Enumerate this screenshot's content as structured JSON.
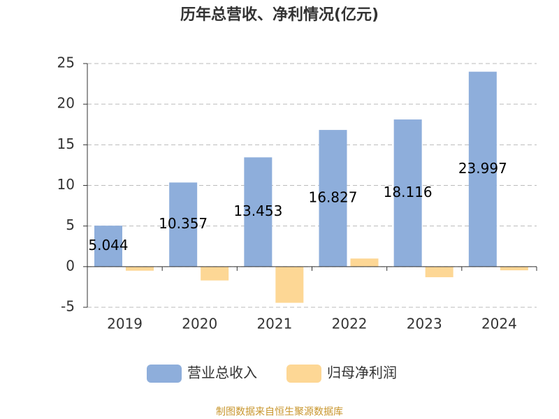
{
  "chart_data": {
    "type": "bar",
    "title": "历年总营收、净利情况(亿元)",
    "categories": [
      "2019",
      "2020",
      "2021",
      "2022",
      "2023",
      "2024"
    ],
    "series": [
      {
        "name": "营业总收入",
        "color": "#8eaedb",
        "values": [
          5.044,
          10.357,
          13.453,
          16.827,
          18.116,
          23.997
        ]
      },
      {
        "name": "归母净利润",
        "color": "#fdd795",
        "values": [
          -0.5,
          -1.7,
          -4.45,
          1.0,
          -1.3,
          -0.45
        ]
      }
    ],
    "ylim": [
      -5,
      25
    ],
    "yticks": [
      -5,
      0,
      5,
      10,
      15,
      20,
      25
    ],
    "grid": true,
    "source": "制图数据来自恒生聚源数据库"
  }
}
